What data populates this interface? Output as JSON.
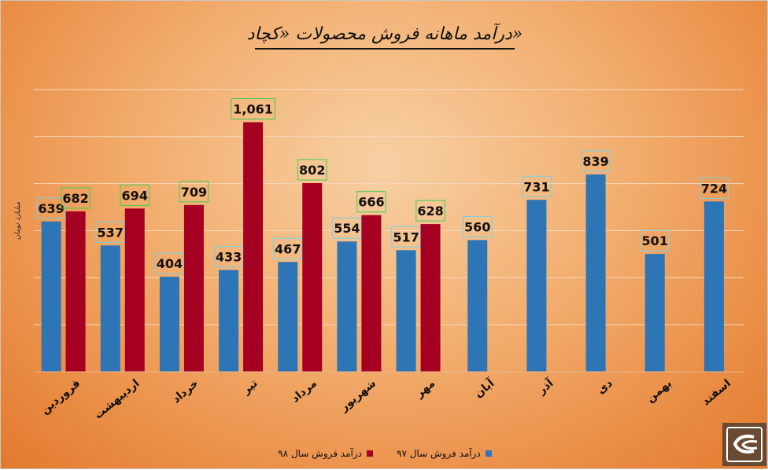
{
  "page": {
    "title": "درآمد ماهانه فروش محصولات «کچاد»"
  },
  "chart_data": {
    "type": "bar",
    "title": "درآمد ماهانه فروش محصولات «کچاد»",
    "ylabel": "میلیارد تومان",
    "xlabel": "",
    "ylim": [
      0,
      1300
    ],
    "grid": true,
    "legend": "bottom",
    "categories": [
      "فروردین",
      "اردیبهشت",
      "خرداد",
      "تیر",
      "مرداد",
      "شهریور",
      "مهر",
      "آبان",
      "آذر",
      "دی",
      "بهمن",
      "اسفند"
    ],
    "series": [
      {
        "name": "درآمد فروش سال ۹۷",
        "color": "#2e75b6",
        "values": [
          639,
          537,
          404,
          433,
          467,
          554,
          517,
          560,
          731,
          839,
          501,
          724
        ],
        "labels": [
          "639",
          "537",
          "404",
          "433",
          "467",
          "554",
          "517",
          "560",
          "731",
          "839",
          "501",
          "724"
        ]
      },
      {
        "name": "درآمد فروش سال ۹۸",
        "color": "#a50021",
        "values": [
          682,
          694,
          709,
          1061,
          802,
          666,
          628,
          null,
          null,
          null,
          null,
          null
        ],
        "labels": [
          "682",
          "694",
          "709",
          "1,061",
          "802",
          "666",
          "628",
          "",
          "",
          "",
          "",
          ""
        ]
      }
    ]
  }
}
